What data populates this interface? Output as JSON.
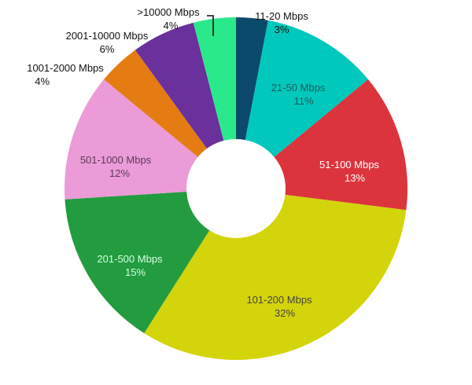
{
  "chart_data": {
    "type": "pie",
    "variant": "donut",
    "title": "",
    "categories": [
      "11-20 Mbps",
      "21-50 Mbps",
      "51-100 Mbps",
      "101-200 Mbps",
      "201-500 Mbps",
      "501-1000 Mbps",
      "1001-2000 Mbps",
      "2001-10000 Mbps",
      ">10000 Mbps"
    ],
    "values": [
      3,
      11,
      13,
      32,
      15,
      12,
      4,
      6,
      4
    ],
    "unit": "%",
    "colors": [
      "#0b4a6a",
      "#00c8bc",
      "#dc343d",
      "#d4d40a",
      "#229c3e",
      "#eb9bd8",
      "#e57c12",
      "#6a309c",
      "#2ae98a"
    ],
    "start_angle_deg": 0,
    "direction": "clockwise",
    "legend": "none",
    "labels": [
      {
        "name": "11-20 Mbps",
        "pct": "3%"
      },
      {
        "name": "21-50 Mbps",
        "pct": "11%"
      },
      {
        "name": "51-100 Mbps",
        "pct": "13%"
      },
      {
        "name": "101-200 Mbps",
        "pct": "32%"
      },
      {
        "name": "201-500 Mbps",
        "pct": "15%"
      },
      {
        "name": "501-1000 Mbps",
        "pct": "12%"
      },
      {
        "name": "1001-2000 Mbps",
        "pct": "4%"
      },
      {
        "name": "2001-10000 Mbps",
        "pct": "6%"
      },
      {
        "name": ">10000 Mbps",
        "pct": "4%"
      }
    ]
  }
}
